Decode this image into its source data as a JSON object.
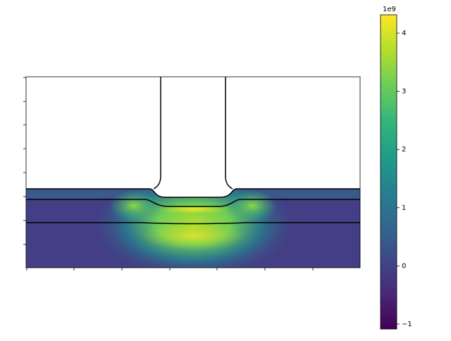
{
  "chart_data": {
    "type": "heatmap",
    "colorbar": {
      "offset_label": "1e9",
      "clim": [
        -1.085,
        4.315
      ],
      "ticks": [
        {
          "value": -1,
          "label": "−1"
        },
        0,
        1,
        2,
        3,
        4
      ],
      "colormap": [
        "#440154",
        "#482878",
        "#3e4989",
        "#31688e",
        "#26828e",
        "#1f9e89",
        "#35b779",
        "#6ece58",
        "#b5de2b",
        "#fde725"
      ]
    }
  }
}
